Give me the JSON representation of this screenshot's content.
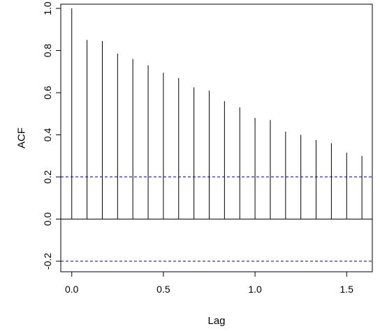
{
  "chart_data": {
    "type": "bar",
    "xlabel": "Lag",
    "ylabel": "ACF",
    "xlim": [
      -0.06,
      1.64
    ],
    "ylim": [
      -0.25,
      1.02
    ],
    "x_ticks": [
      0.0,
      0.5,
      1.0,
      1.5
    ],
    "x_tick_labels": [
      "0.0",
      "0.5",
      "1.0",
      "1.5"
    ],
    "y_ticks": [
      -0.2,
      0.0,
      0.2,
      0.4,
      0.6,
      0.8,
      1.0
    ],
    "y_tick_labels": [
      "-0.2",
      "0.0",
      "0.2",
      "0.4",
      "0.6",
      "0.8",
      "1.0"
    ],
    "lags": [
      0.0,
      0.0833,
      0.1667,
      0.25,
      0.3333,
      0.4167,
      0.5,
      0.5833,
      0.6667,
      0.75,
      0.8333,
      0.9167,
      1.0,
      1.0833,
      1.1667,
      1.25,
      1.3333,
      1.4167,
      1.5,
      1.5833
    ],
    "acf": [
      1.0,
      0.85,
      0.845,
      0.785,
      0.76,
      0.73,
      0.695,
      0.67,
      0.625,
      0.61,
      0.56,
      0.53,
      0.48,
      0.47,
      0.415,
      0.4,
      0.375,
      0.36,
      0.315,
      0.3
    ],
    "confidence_bounds": [
      0.2,
      -0.2
    ],
    "colors": {
      "spikes": "#000000",
      "confidence": "#00008b",
      "zero_line": "#000000"
    },
    "grid": false
  }
}
